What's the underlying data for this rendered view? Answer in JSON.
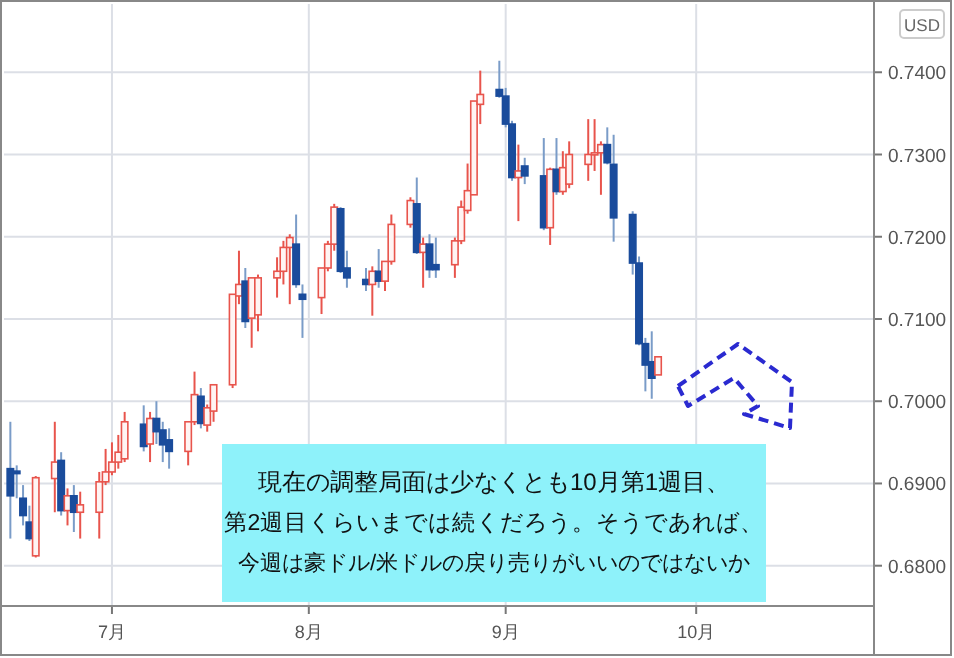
{
  "chart_data": {
    "type": "candlestick",
    "ylabel": "USD",
    "annotations": [
      "現在の調整局面は少なくとも10月第1週目、",
      "第2週目くらいまでは続くだろう。そうであれば、",
      "今週は豪ドル/米ドルの戻り売りがいいのではないか"
    ],
    "x": [
      "--06-15",
      "--06-16",
      "--06-17",
      "--06-18",
      "--06-19",
      "--06-22",
      "--06-23",
      "--06-24",
      "--06-25",
      "--06-26",
      "--06-29",
      "--06-30",
      "--07-01",
      "--07-02",
      "--07-03",
      "--07-06",
      "--07-07",
      "--07-08",
      "--07-09",
      "--07-10",
      "--07-13",
      "--07-14",
      "--07-15",
      "--07-16",
      "--07-17",
      "--07-20",
      "--07-21",
      "--07-22",
      "--07-23",
      "--07-24",
      "--07-27",
      "--07-28",
      "--07-29",
      "--07-30",
      "--07-31",
      "--08-03",
      "--08-04",
      "--08-05",
      "--08-06",
      "--08-07",
      "--08-10",
      "--08-11",
      "--08-12",
      "--08-13",
      "--08-14",
      "--08-17",
      "--08-18",
      "--08-19",
      "--08-20",
      "--08-21",
      "--08-24",
      "--08-25",
      "--08-26",
      "--08-27",
      "--08-28",
      "--08-31",
      "--09-01",
      "--09-02",
      "--09-03",
      "--09-04",
      "--09-07",
      "--09-08",
      "--09-09",
      "--09-10",
      "--09-11",
      "--09-14",
      "--09-15",
      "--09-16",
      "--09-17",
      "--09-18",
      "--09-21",
      "--09-22",
      "--09-23",
      "--09-24",
      "--09-25"
    ],
    "ohlc": [
      [
        0.6918,
        0.6975,
        0.6833,
        0.6885
      ],
      [
        0.6915,
        0.6922,
        0.6882,
        0.6912
      ],
      [
        0.6882,
        0.6898,
        0.6849,
        0.6861
      ],
      [
        0.6853,
        0.6873,
        0.683,
        0.6833
      ],
      [
        0.6812,
        0.6909,
        0.681,
        0.6907
      ],
      [
        0.6906,
        0.6975,
        0.6865,
        0.6926
      ],
      [
        0.6928,
        0.6938,
        0.6861,
        0.6867
      ],
      [
        0.6867,
        0.6894,
        0.6849,
        0.6885
      ],
      [
        0.6885,
        0.6898,
        0.6841,
        0.6865
      ],
      [
        0.6865,
        0.689,
        0.6833,
        0.6874
      ],
      [
        0.6865,
        0.6914,
        0.6833,
        0.6902
      ],
      [
        0.6902,
        0.6942,
        0.6898,
        0.6914
      ],
      [
        0.6914,
        0.695,
        0.691,
        0.6926
      ],
      [
        0.6926,
        0.6959,
        0.6918,
        0.6938
      ],
      [
        0.693,
        0.6987,
        0.6926,
        0.6975
      ],
      [
        0.6972,
        0.6995,
        0.6939,
        0.6945
      ],
      [
        0.6948,
        0.6987,
        0.6926,
        0.6979
      ],
      [
        0.6979,
        0.7,
        0.6948,
        0.6963
      ],
      [
        0.6965,
        0.6975,
        0.6926,
        0.6947
      ],
      [
        0.6953,
        0.6967,
        0.6918,
        0.6939
      ],
      [
        0.6939,
        0.6975,
        0.6922,
        0.6975
      ],
      [
        0.6975,
        0.7036,
        0.6971,
        0.7008
      ],
      [
        0.7006,
        0.7016,
        0.6967,
        0.6973
      ],
      [
        0.6971,
        0.6996,
        0.6963,
        0.6992
      ],
      [
        0.6988,
        0.702,
        0.6975,
        0.702
      ],
      [
        0.702,
        0.713,
        0.7016,
        0.713
      ],
      [
        0.7128,
        0.7183,
        0.7118,
        0.7142
      ],
      [
        0.7146,
        0.7162,
        0.7089,
        0.7097
      ],
      [
        0.7101,
        0.715,
        0.7065,
        0.715
      ],
      [
        0.7105,
        0.7154,
        0.7085,
        0.715
      ],
      [
        0.715,
        0.7175,
        0.7126,
        0.7158
      ],
      [
        0.7158,
        0.7195,
        0.7142,
        0.7187
      ],
      [
        0.7187,
        0.7203,
        0.7118,
        0.7199
      ],
      [
        0.7191,
        0.7227,
        0.7138,
        0.7142
      ],
      [
        0.713,
        0.7142,
        0.7077,
        0.7124
      ],
      [
        0.7126,
        0.7162,
        0.7106,
        0.7162
      ],
      [
        0.7162,
        0.7195,
        0.7158,
        0.7191
      ],
      [
        0.7191,
        0.724,
        0.7183,
        0.7236
      ],
      [
        0.7234,
        0.7236,
        0.7156,
        0.7158
      ],
      [
        0.7162,
        0.7183,
        0.7138,
        0.715
      ],
      [
        0.7148,
        0.7162,
        0.7134,
        0.7142
      ],
      [
        0.7142,
        0.7164,
        0.7104,
        0.7158
      ],
      [
        0.7158,
        0.7185,
        0.7138,
        0.7146
      ],
      [
        0.7146,
        0.717,
        0.7134,
        0.717
      ],
      [
        0.717,
        0.7227,
        0.7166,
        0.7215
      ],
      [
        0.7215,
        0.7248,
        0.7211,
        0.7244
      ],
      [
        0.724,
        0.7272,
        0.7179,
        0.7181
      ],
      [
        0.7181,
        0.7199,
        0.7138,
        0.7191
      ],
      [
        0.7191,
        0.7203,
        0.715,
        0.716
      ],
      [
        0.7166,
        0.7199,
        0.715,
        0.716
      ],
      [
        0.7166,
        0.7199,
        0.715,
        0.7195
      ],
      [
        0.7195,
        0.7244,
        0.7191,
        0.7236
      ],
      [
        0.7232,
        0.7289,
        0.7228,
        0.7256
      ],
      [
        0.7251,
        0.7365,
        0.7251,
        0.7365
      ],
      [
        0.7361,
        0.7402,
        0.7337,
        0.7373
      ],
      [
        0.7379,
        0.7414,
        0.7369,
        0.7371
      ],
      [
        0.7371,
        0.7381,
        0.7333,
        0.7337
      ],
      [
        0.7337,
        0.7341,
        0.7268,
        0.7272
      ],
      [
        0.7272,
        0.7312,
        0.7219,
        0.728
      ],
      [
        0.7286,
        0.7296,
        0.7264,
        0.7274
      ],
      [
        0.7274,
        0.732,
        0.7208,
        0.7211
      ],
      [
        0.7211,
        0.7284,
        0.719,
        0.7282
      ],
      [
        0.7282,
        0.732,
        0.7251,
        0.7255
      ],
      [
        0.7255,
        0.7304,
        0.7251,
        0.7284
      ],
      [
        0.7264,
        0.7316,
        0.7259,
        0.73
      ],
      [
        0.7288,
        0.7343,
        0.7268,
        0.73
      ],
      [
        0.73,
        0.7343,
        0.728,
        0.7302
      ],
      [
        0.7302,
        0.7316,
        0.7251,
        0.7312
      ],
      [
        0.7312,
        0.7333,
        0.7288,
        0.729
      ],
      [
        0.7288,
        0.7324,
        0.7194,
        0.7223
      ],
      [
        0.7227,
        0.7231,
        0.7154,
        0.7168
      ],
      [
        0.7168,
        0.7176,
        0.7068,
        0.707
      ],
      [
        0.707,
        0.7077,
        0.7012,
        0.7044
      ],
      [
        0.7048,
        0.7085,
        0.7003,
        0.7028
      ],
      [
        0.7032,
        0.7054,
        0.7032,
        0.7054
      ]
    ],
    "xlim": [
      "--06-14",
      "--10-29"
    ],
    "xticks": [
      {
        "value": "--07-01",
        "label": "7月"
      },
      {
        "value": "--08-01",
        "label": "8月"
      },
      {
        "value": "--09-01",
        "label": "9月"
      },
      {
        "value": "--10-01",
        "label": "10月"
      }
    ],
    "ylim": [
      0.6751,
      0.7483
    ],
    "yticks": [
      {
        "value": 0.68,
        "label": "0.6800"
      },
      {
        "value": 0.69,
        "label": "0.6900"
      },
      {
        "value": 0.7,
        "label": "0.7000"
      },
      {
        "value": 0.71,
        "label": "0.7100"
      },
      {
        "value": 0.72,
        "label": "0.7200"
      },
      {
        "value": 0.73,
        "label": "0.7300"
      },
      {
        "value": 0.74,
        "label": "0.7400"
      }
    ],
    "grid": true
  }
}
